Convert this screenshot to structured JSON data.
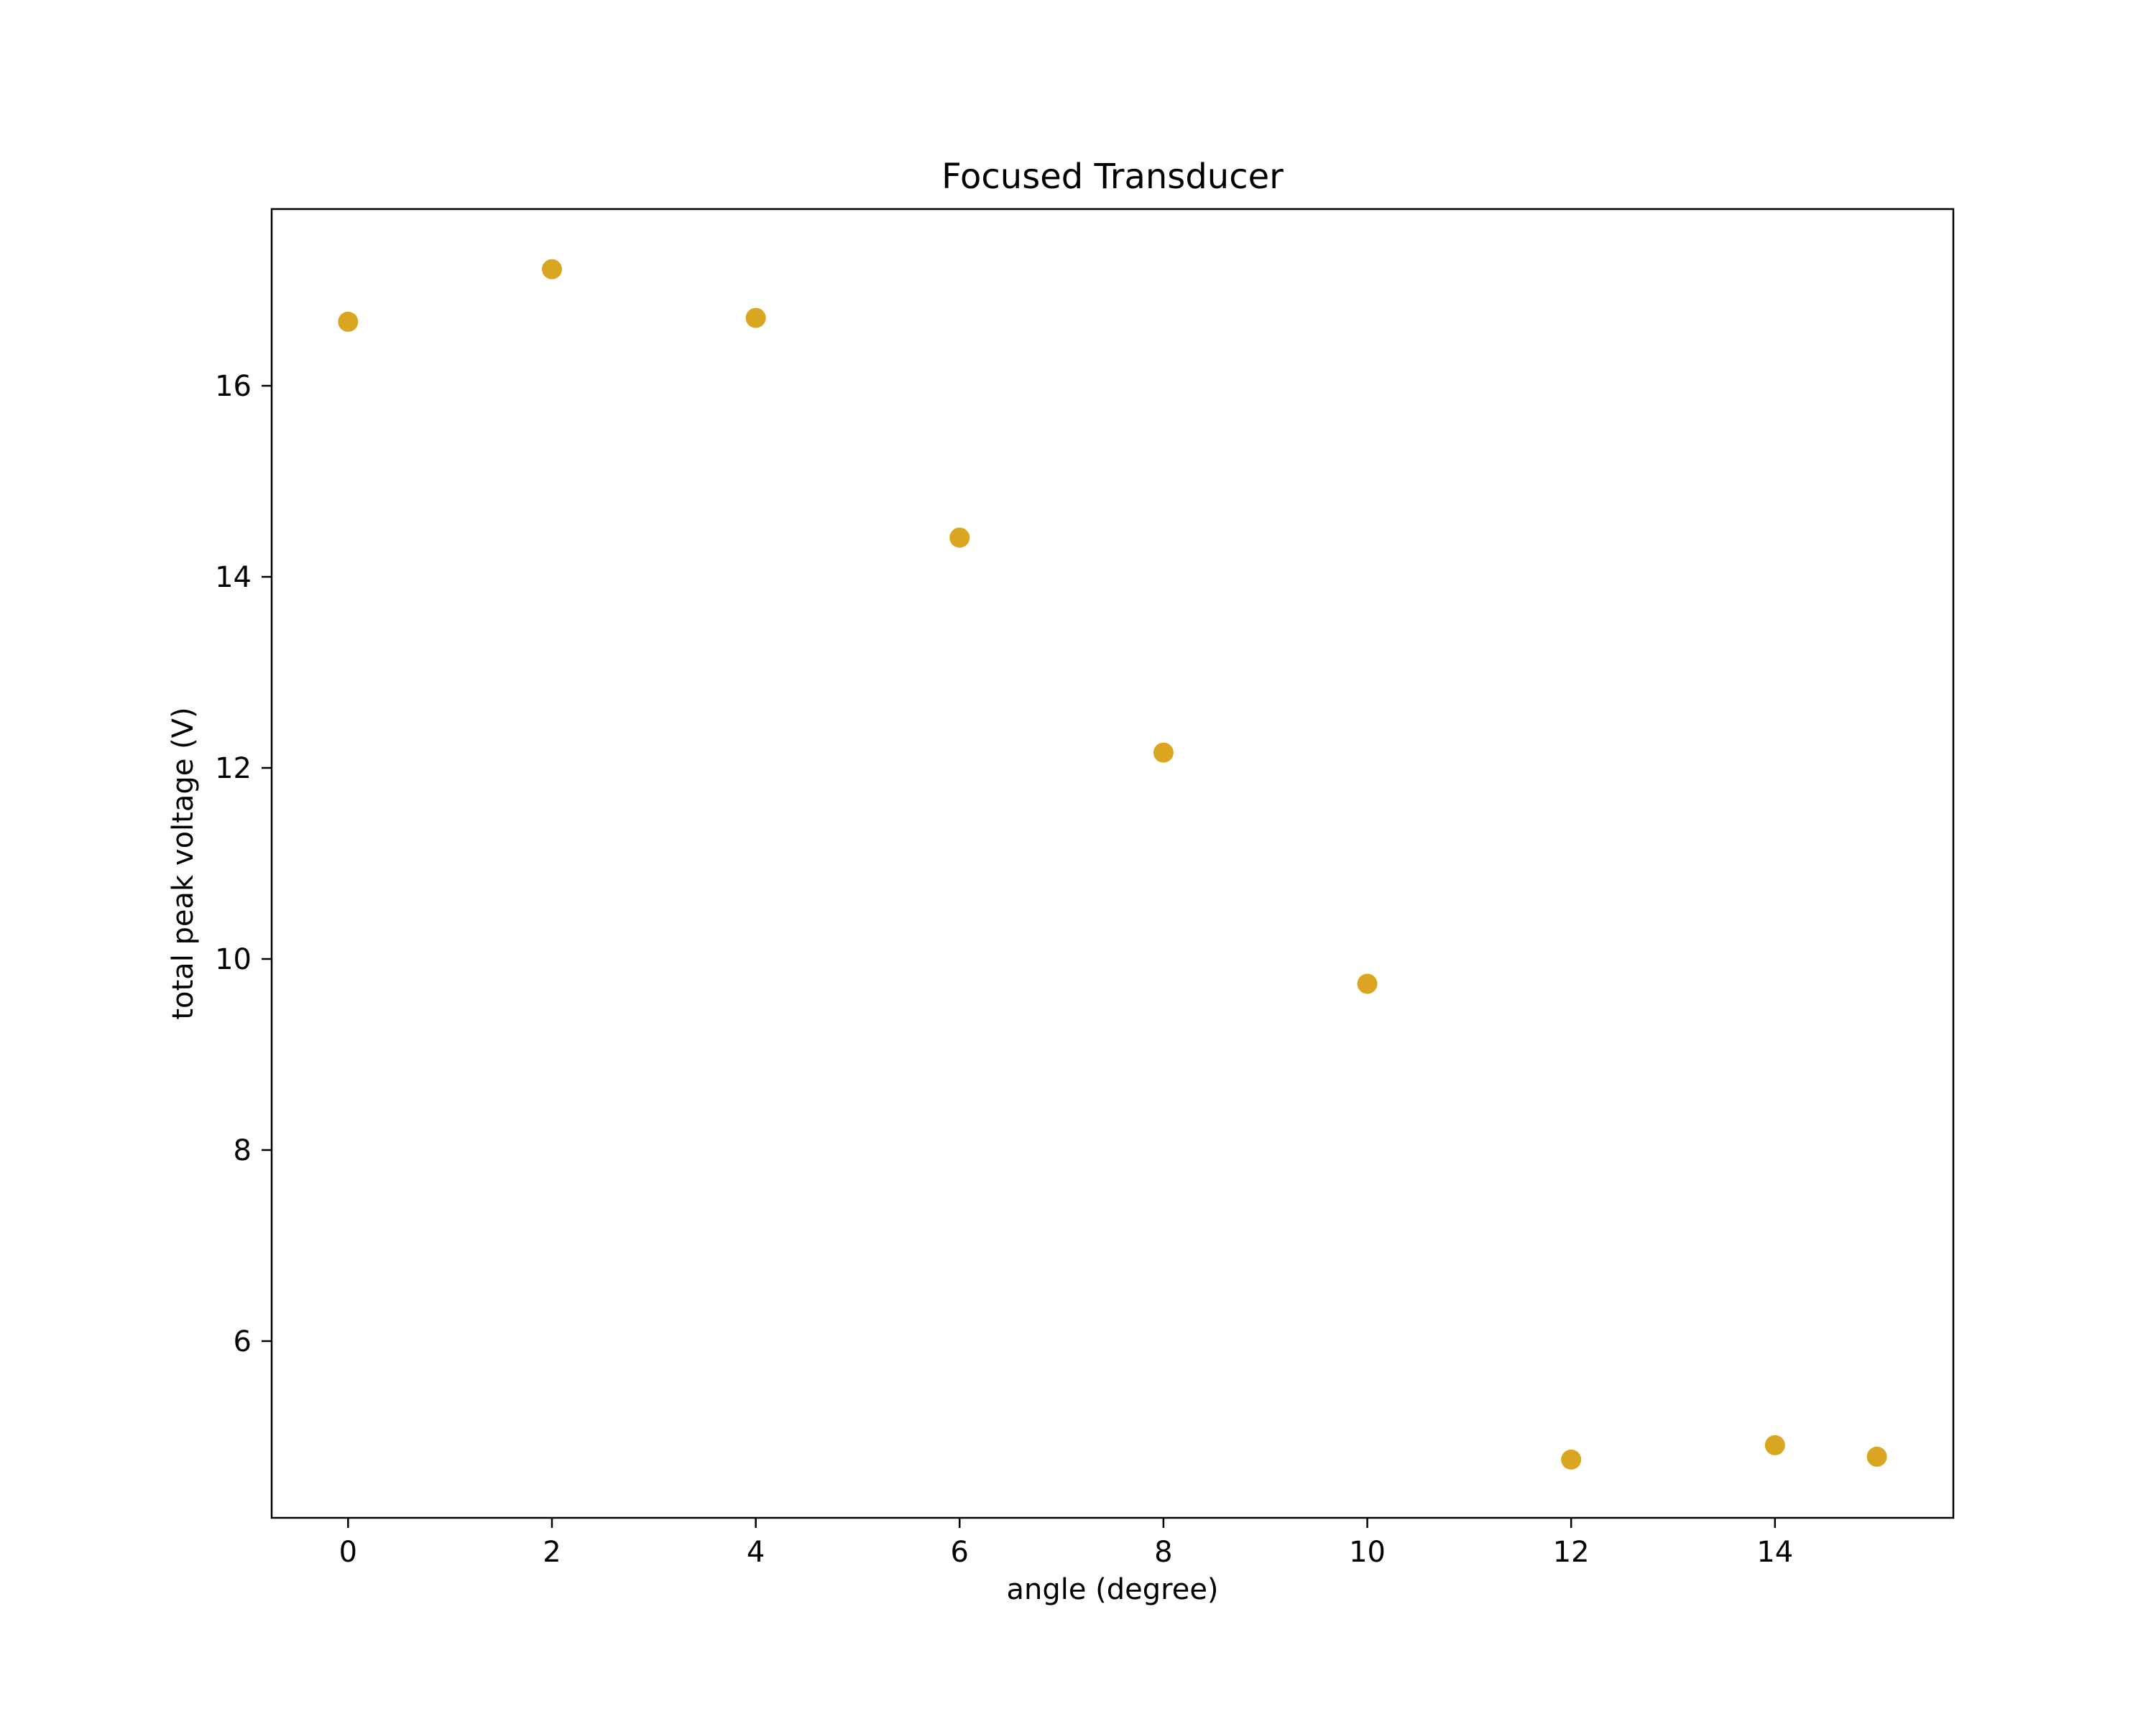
{
  "chart_data": {
    "type": "scatter",
    "title": "Focused Transducer",
    "xlabel": "angle (degree)",
    "ylabel": "total peak voltage (V)",
    "xlim": [
      -0.75,
      15.75
    ],
    "ylim": [
      4.15,
      17.85
    ],
    "xticks": [
      0,
      2,
      4,
      6,
      8,
      10,
      12,
      14
    ],
    "xtick_labels": [
      "0",
      "2",
      "4",
      "6",
      "8",
      "10",
      "12",
      "14"
    ],
    "yticks": [
      6,
      8,
      10,
      12,
      14,
      16
    ],
    "ytick_labels": [
      "6",
      "8",
      "10",
      "12",
      "14",
      "16"
    ],
    "grid": false,
    "marker_color": "#DAA520",
    "series": [
      {
        "x": [
          0,
          2,
          4,
          6,
          8,
          10,
          12,
          14,
          15
        ],
        "y": [
          16.67,
          17.22,
          16.71,
          14.41,
          12.16,
          9.74,
          4.76,
          4.91,
          4.79
        ]
      }
    ]
  }
}
